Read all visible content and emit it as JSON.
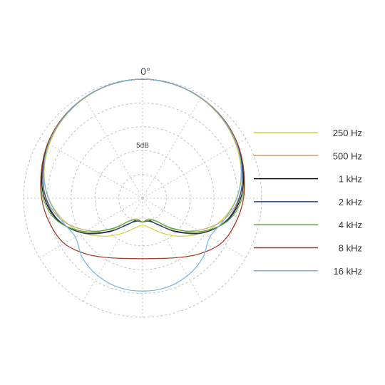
{
  "chart_data": {
    "type": "polar-line",
    "angle_label": "0°",
    "ring_label": "5dB",
    "range_db": [
      -25,
      0
    ],
    "ring_step_db": 5,
    "spoke_step_deg": 30,
    "grid": true,
    "legend_position": "right",
    "angles_deg": [
      0,
      15,
      30,
      45,
      60,
      75,
      90,
      105,
      120,
      135,
      150,
      165,
      180
    ],
    "series": [
      {
        "name": "250 Hz",
        "color": "#d8d23a",
        "values_db": [
          0,
          -0.2,
          -0.7,
          -1.4,
          -2.4,
          -3.6,
          -5.3,
          -7.7,
          -10.5,
          -13.7,
          -16.5,
          -18.5,
          -19.3
        ]
      },
      {
        "name": "500 Hz",
        "color": "#c7a47a",
        "values_db": [
          0,
          -0.2,
          -0.6,
          -1.3,
          -2.2,
          -3.3,
          -4.8,
          -7.4,
          -11.5,
          -15.8,
          -19.5,
          -20.5,
          -20.0
        ]
      },
      {
        "name": "1 kHz",
        "color": "#111111",
        "values_db": [
          0,
          -0.2,
          -0.6,
          -1.3,
          -2.1,
          -3.1,
          -4.4,
          -6.7,
          -10.5,
          -15.2,
          -18.6,
          -20.2,
          -20.0
        ]
      },
      {
        "name": "2 kHz",
        "color": "#2c3f7c",
        "values_db": [
          0,
          -0.2,
          -0.6,
          -1.3,
          -2.2,
          -3.3,
          -4.7,
          -6.8,
          -10.4,
          -15.0,
          -18.7,
          -20.0,
          -20.0
        ]
      },
      {
        "name": "4 kHz",
        "color": "#55a832",
        "values_db": [
          0,
          -0.2,
          -0.6,
          -1.2,
          -2.0,
          -3.0,
          -4.1,
          -6.5,
          -11.0,
          -16.0,
          -19.5,
          -20.2,
          -20.0
        ]
      },
      {
        "name": "8 kHz",
        "color": "#a8321e",
        "values_db": [
          0,
          -0.2,
          -0.6,
          -1.2,
          -2.0,
          -3.0,
          -3.8,
          -4.8,
          -6.0,
          -8.4,
          -10.6,
          -11.9,
          -12.3
        ]
      },
      {
        "name": "16 kHz",
        "color": "#73b4e3",
        "values_db": [
          0,
          -0.2,
          -0.6,
          -1.3,
          -2.2,
          -3.5,
          -5.2,
          -7.3,
          -8.7,
          -7.2,
          -6.2,
          -5.6,
          -5.5
        ]
      }
    ]
  }
}
